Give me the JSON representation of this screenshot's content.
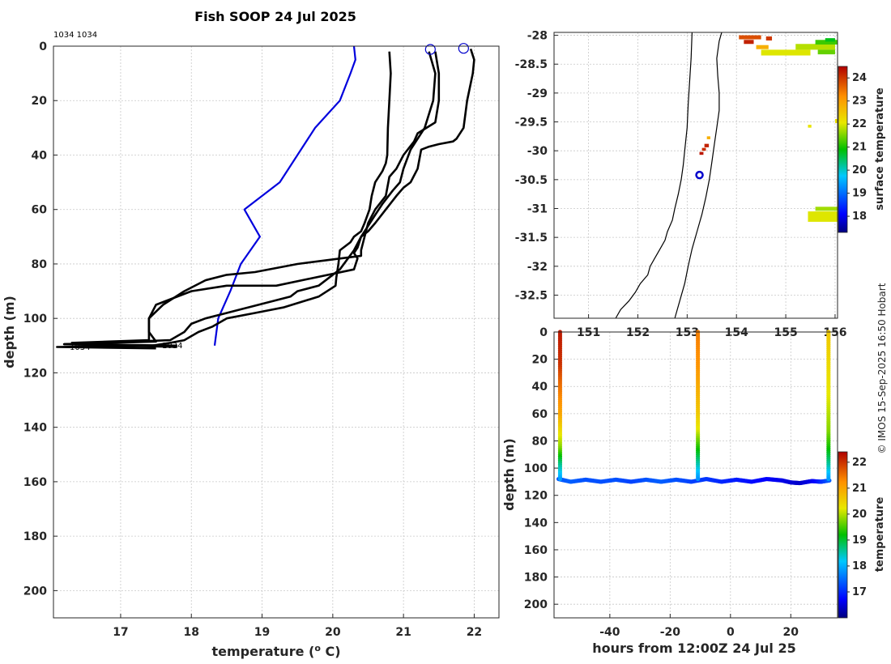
{
  "title": "Fish SOOP 24 Jul 2025",
  "credit": "© IMOS 15-Sep-2025 16:50 Hobart",
  "profile_tag": "1034 1034",
  "profile_end_labels": [
    "1034",
    "1034"
  ],
  "colors": {
    "profile_line": "#000000",
    "reference_line": "#0000dd",
    "marker": "#0000cc"
  },
  "chart_data": [
    {
      "id": "profile",
      "type": "line",
      "xlabel": "temperature (",
      "xlabel_sup": "o",
      "xlabel_tail": " C)",
      "ylabel": "depth (m)",
      "xlim": [
        16.05,
        22.35
      ],
      "ylim": [
        0,
        210
      ],
      "y_inverted": true,
      "xticks": [
        17,
        18,
        19,
        20,
        21,
        22
      ],
      "yticks": [
        0,
        20,
        40,
        60,
        80,
        100,
        120,
        140,
        160,
        180,
        200
      ],
      "grid": true,
      "surface_markers": [
        {
          "x": 21.38,
          "y": 1.2
        },
        {
          "x": 21.85,
          "y": 0.8
        }
      ],
      "series": [
        {
          "name": "reference",
          "color": "#0000dd",
          "width": 2.2,
          "x": [
            20.3,
            20.32,
            20.25,
            20.1,
            19.75,
            19.5,
            19.25,
            18.75,
            18.97,
            18.7,
            18.55,
            18.38,
            18.33
          ],
          "y": [
            0,
            5,
            10,
            20,
            30,
            40,
            50,
            60,
            70,
            80,
            90,
            100,
            110
          ]
        },
        {
          "name": "cast-1",
          "color": "#000000",
          "width": 2.6,
          "x": [
            20.8,
            20.82,
            20.8,
            20.78,
            20.77,
            20.75,
            20.7,
            20.6,
            20.55,
            20.52,
            20.45,
            20.4,
            20.3,
            20.25,
            20.1,
            20.08,
            20.05,
            20.04,
            19.8,
            19.3,
            18.9,
            18.5,
            18.3,
            18.1,
            17.9,
            17.7,
            17.45,
            16.1,
            17.5
          ],
          "y": [
            2,
            10,
            20,
            30,
            40,
            43,
            46,
            50,
            55,
            60,
            65,
            68,
            70,
            72,
            75,
            80,
            85,
            88,
            92,
            96,
            98,
            100,
            103,
            105,
            108,
            109,
            110,
            110.5,
            111
          ]
        },
        {
          "name": "cast-2",
          "color": "#000000",
          "width": 2.6,
          "x": [
            21.36,
            21.45,
            21.42,
            21.3,
            21.1,
            21.0,
            20.95,
            20.85,
            20.7,
            20.6,
            20.5,
            20.4,
            20.35,
            20.3,
            20.35,
            20.3,
            19.2,
            18.5,
            18.0,
            17.5,
            17.4,
            17.4,
            17.5,
            16.2,
            17.8
          ],
          "y": [
            2,
            10,
            20,
            30,
            38,
            45,
            50,
            53,
            58,
            62,
            66,
            70,
            74,
            76,
            78,
            82,
            88,
            88,
            90,
            95,
            100,
            105,
            108.5,
            109.5,
            110.5
          ]
        },
        {
          "name": "cast-3",
          "color": "#000000",
          "width": 2.6,
          "x": [
            21.45,
            21.5,
            21.5,
            21.45,
            21.2,
            21.15,
            21.0,
            20.9,
            20.8,
            20.75,
            20.6,
            20.5,
            20.45,
            20.4,
            20.4,
            19.5,
            18.9,
            18.5,
            18.2,
            17.9,
            17.6,
            17.4,
            17.4,
            16.3
          ],
          "y": [
            2,
            10,
            20,
            28,
            32,
            35,
            40,
            45,
            48,
            55,
            60,
            65,
            70,
            75,
            77,
            80,
            83,
            84,
            86,
            90,
            95,
            100,
            108,
            109
          ]
        },
        {
          "name": "cast-4",
          "color": "#000000",
          "width": 2.6,
          "x": [
            21.95,
            22.0,
            21.98,
            21.9,
            21.85,
            21.75,
            21.7,
            21.5,
            21.35,
            21.25,
            21.2,
            21.1,
            21.0,
            20.9,
            20.75,
            20.6,
            20.5,
            20.4,
            20.3,
            20.1,
            19.8,
            19.5,
            19.4,
            19.1,
            18.8,
            18.5,
            18.2,
            18.0,
            17.9,
            17.7,
            16.2,
            17.8
          ],
          "y": [
            1,
            5,
            10,
            20,
            30,
            34,
            35,
            36,
            37,
            38,
            45,
            50,
            52,
            55,
            60,
            65,
            68,
            70,
            75,
            82,
            88,
            90,
            92,
            94,
            96,
            98,
            100,
            102,
            105,
            108,
            109.5,
            110
          ]
        }
      ]
    },
    {
      "id": "surface-map",
      "type": "heatmap",
      "xlim": [
        150.3,
        156.05
      ],
      "ylim": [
        -32.9,
        -27.95
      ],
      "xticks": [
        151,
        152,
        153,
        154,
        155,
        156
      ],
      "xtick_labels": [
        "151",
        "152",
        "153",
        "154",
        "155",
        "156"
      ],
      "yticks": [
        -28,
        -28.5,
        -29,
        -29.5,
        -30,
        -30.5,
        -31,
        -31.5,
        -32,
        -32.5
      ],
      "ytick_labels": [
        "-28",
        "-28.5",
        "-29",
        "-29.5",
        "-30",
        "-30.5",
        "-31",
        "-31.5",
        "-32",
        "-32.5"
      ],
      "grid": true,
      "colorbar_label": "surface temperature",
      "colorbar_range": [
        17.3,
        24.5
      ],
      "colorbar_ticks": [
        24,
        23,
        22,
        21,
        20,
        19,
        18
      ],
      "ship_position": {
        "lon": 153.25,
        "lat": -30.42
      },
      "coastline": {
        "lon": [
          151.55,
          151.65,
          151.82,
          151.95,
          152.05,
          152.2,
          152.25,
          152.35,
          152.45,
          152.55,
          152.6,
          152.7,
          152.75,
          152.82,
          152.88,
          152.92,
          152.95,
          153.0,
          153.02,
          153.05,
          153.08,
          153.1
        ],
        "lat": [
          -32.9,
          -32.75,
          -32.6,
          -32.45,
          -32.3,
          -32.15,
          -32.0,
          -31.85,
          -31.7,
          -31.55,
          -31.4,
          -31.2,
          -31.0,
          -30.75,
          -30.5,
          -30.25,
          -30.0,
          -29.6,
          -29.2,
          -28.8,
          -28.4,
          -27.95
        ]
      },
      "shelf_edge": {
        "lon": [
          152.75,
          152.85,
          152.95,
          153.02,
          153.1,
          153.2,
          153.3,
          153.38,
          153.45,
          153.5,
          153.55,
          153.6,
          153.65,
          153.65,
          153.62,
          153.6,
          153.65,
          153.7
        ],
        "lat": [
          -32.9,
          -32.6,
          -32.3,
          -32.0,
          -31.7,
          -31.4,
          -31.1,
          -30.8,
          -30.5,
          -30.2,
          -29.9,
          -29.6,
          -29.3,
          -29.0,
          -28.7,
          -28.4,
          -28.1,
          -27.95
        ]
      },
      "patches": [
        {
          "lon": 154.05,
          "lat": -28.0,
          "w": 0.45,
          "h": 0.07,
          "value": 23.8
        },
        {
          "lon": 154.15,
          "lat": -28.08,
          "w": 0.2,
          "h": 0.07,
          "value": 24.2
        },
        {
          "lon": 154.6,
          "lat": -28.02,
          "w": 0.12,
          "h": 0.07,
          "value": 24.0
        },
        {
          "lon": 154.4,
          "lat": -28.17,
          "w": 0.25,
          "h": 0.07,
          "value": 22.8
        },
        {
          "lon": 154.5,
          "lat": -28.25,
          "w": 1.0,
          "h": 0.1,
          "value": 22.0
        },
        {
          "lon": 155.2,
          "lat": -28.15,
          "w": 0.8,
          "h": 0.1,
          "value": 21.8
        },
        {
          "lon": 155.6,
          "lat": -28.08,
          "w": 0.45,
          "h": 0.08,
          "value": 21.2
        },
        {
          "lon": 155.8,
          "lat": -28.05,
          "w": 0.2,
          "h": 0.06,
          "value": 20.8
        },
        {
          "lon": 155.65,
          "lat": -28.25,
          "w": 0.35,
          "h": 0.08,
          "value": 21.4
        },
        {
          "lon": 156.0,
          "lat": -29.45,
          "w": 0.05,
          "h": 0.07,
          "value": 22.2
        },
        {
          "lon": 155.45,
          "lat": -29.55,
          "w": 0.07,
          "h": 0.05,
          "value": 22.1
        },
        {
          "lon": 153.4,
          "lat": -29.75,
          "w": 0.07,
          "h": 0.05,
          "value": 22.8
        },
        {
          "lon": 153.35,
          "lat": -29.88,
          "w": 0.09,
          "h": 0.06,
          "value": 24.2
        },
        {
          "lon": 153.3,
          "lat": -29.95,
          "w": 0.08,
          "h": 0.05,
          "value": 24.1
        },
        {
          "lon": 153.25,
          "lat": -30.02,
          "w": 0.08,
          "h": 0.05,
          "value": 24.3
        },
        {
          "lon": 155.45,
          "lat": -31.05,
          "w": 0.6,
          "h": 0.18,
          "value": 22.0
        },
        {
          "lon": 155.6,
          "lat": -30.97,
          "w": 0.45,
          "h": 0.07,
          "value": 21.7
        }
      ]
    },
    {
      "id": "depth-time",
      "type": "scatter",
      "xlabel": "hours from 12:00Z 24 Jul 25",
      "ylabel": "depth (m)",
      "xlim": [
        -58.5,
        35.5
      ],
      "ylim": [
        0,
        210
      ],
      "y_inverted": true,
      "xticks": [
        -40,
        -20,
        0,
        20
      ],
      "xtick_labels": [
        "-40",
        "-20",
        "0",
        "20"
      ],
      "yticks": [
        0,
        20,
        40,
        60,
        80,
        100,
        120,
        140,
        160,
        180,
        200
      ],
      "grid": true,
      "colorbar_label": "temperature",
      "colorbar_range": [
        16.0,
        22.4
      ],
      "colorbar_ticks": [
        22,
        21,
        20,
        19,
        18,
        17
      ],
      "casts": [
        {
          "time": -56.5,
          "bottom": 109,
          "temps": [
            22.2,
            22.1,
            22.0,
            21.6,
            21.3,
            21.0,
            20.4,
            19.8,
            18.7,
            17.8
          ]
        },
        {
          "time": -10.8,
          "bottom": 108,
          "temps": [
            21.4,
            21.3,
            21.2,
            21.0,
            20.8,
            20.6,
            20.2,
            19.4,
            18.6,
            17.8
          ]
        },
        {
          "time": 32.5,
          "bottom": 109,
          "temps": [
            20.6,
            20.5,
            20.4,
            20.3,
            20.2,
            20.0,
            19.8,
            19.3,
            18.6,
            17.8
          ]
        }
      ],
      "bottom_track": {
        "time": [
          -57,
          -53,
          -48,
          -43,
          -38,
          -33,
          -28,
          -23,
          -18,
          -13,
          -8,
          -3,
          2,
          7,
          12,
          17,
          20,
          23,
          27,
          30,
          33
        ],
        "depth": [
          108,
          110,
          108.5,
          110,
          108.5,
          110,
          108.5,
          110,
          108.5,
          110,
          108,
          110,
          108.5,
          110,
          108,
          109,
          110.5,
          111,
          109.5,
          110,
          109
        ],
        "temps": [
          17.3,
          17.4,
          17.3,
          17.3,
          17.3,
          17.2,
          17.3,
          17.4,
          17.3,
          17.2,
          17.1,
          17.0,
          16.9,
          16.8,
          16.7,
          16.6,
          16.5,
          16.4,
          16.6,
          17.0,
          17.4
        ]
      }
    }
  ]
}
